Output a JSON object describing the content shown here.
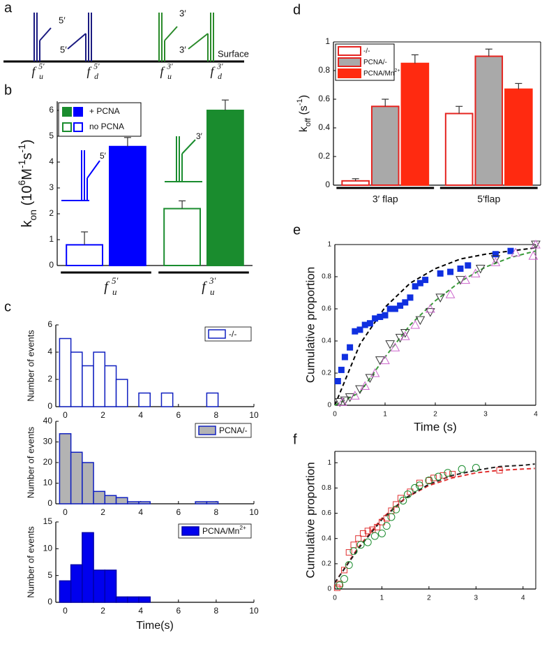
{
  "panel_a": {
    "label": "a",
    "primer_labels": [
      "5′",
      "5′",
      "3′",
      "3′"
    ],
    "surface": "Surface",
    "substrates": [
      {
        "base": "f",
        "sub": "u",
        "sup": "5′"
      },
      {
        "base": "f",
        "sub": "d",
        "sup": "5′"
      },
      {
        "base": "f",
        "sub": "u",
        "sup": "3′"
      },
      {
        "base": "f",
        "sub": "d",
        "sup": "3′"
      }
    ]
  },
  "chart_data": [
    {
      "type": "bar",
      "panel_label": "b",
      "ylabel": [
        {
          "text": "k"
        },
        {
          "text": "on",
          "shift": "sub"
        },
        {
          "text": "  (10"
        },
        {
          "text": "6",
          "shift": "sup"
        },
        {
          "text": "M"
        },
        {
          "text": "-1",
          "shift": "sup"
        },
        {
          "text": "s"
        },
        {
          "text": "-1",
          "shift": "sup"
        },
        {
          "text": ")"
        }
      ],
      "categories": [
        {
          "base": "f",
          "sub": "u",
          "sup": "5′"
        },
        {
          "base": "f",
          "sub": "u",
          "sup": "3′"
        }
      ],
      "category_colors": [
        "#0000ff",
        "#1a8c2e"
      ],
      "series": [
        {
          "name": "no PCNA",
          "filled": false,
          "values": [
            0.8,
            2.2
          ],
          "errors": [
            0.5,
            0.3
          ]
        },
        {
          "name": "+ PCNA",
          "filled": true,
          "values": [
            4.6,
            6.0
          ],
          "errors": [
            0.35,
            0.4
          ]
        }
      ],
      "insets": [
        "5′",
        "3′"
      ],
      "ylim": [
        0,
        6.35
      ],
      "yticks": [
        0,
        1,
        2,
        3,
        4,
        5,
        6
      ]
    },
    {
      "type": "histogram",
      "panel_label": "c",
      "ylabel": "Number of events",
      "series": [
        {
          "name": [
            {
              "text": "-/-"
            }
          ],
          "fill": "#ffffff",
          "edge": "#1020c0"
        }
      ],
      "bins": [
        -0.3,
        0.3,
        0.9,
        1.5,
        2.1,
        2.7,
        3.3,
        3.9,
        4.5,
        5.1,
        5.7,
        6.3,
        6.9,
        7.5,
        8.1
      ],
      "counts": [
        5,
        4,
        3,
        4,
        3,
        2,
        0,
        1,
        0,
        1,
        0,
        0,
        0,
        1
      ],
      "xlim": [
        -0.5,
        10
      ],
      "xticks": [
        0,
        2,
        4,
        6,
        8,
        10
      ],
      "ylim": [
        0,
        6
      ],
      "yticks": [
        0,
        2,
        4,
        6
      ]
    },
    {
      "type": "histogram",
      "ylabel": "Number of events",
      "series": [
        {
          "name": [
            {
              "text": "PCNA/-"
            }
          ],
          "fill": "#b3b3b3",
          "edge": "#1020c0"
        }
      ],
      "bins": [
        -0.3,
        0.3,
        0.9,
        1.5,
        2.1,
        2.7,
        3.3,
        3.9,
        4.5,
        5.1,
        5.7,
        6.3,
        6.9,
        7.5,
        8.1
      ],
      "counts": [
        34,
        25,
        20,
        6,
        4,
        3,
        1,
        1,
        0,
        0,
        0,
        0,
        1,
        1
      ],
      "xlim": [
        -0.5,
        10
      ],
      "xticks": [
        0,
        2,
        4,
        6,
        8,
        10
      ],
      "ylim": [
        0,
        40
      ],
      "yticks": [
        0,
        10,
        20,
        30,
        40
      ]
    },
    {
      "type": "histogram",
      "ylabel": "Number of events",
      "xlabel": "Time(s)",
      "series": [
        {
          "name": [
            {
              "text": "PCNA/Mn"
            },
            {
              "text": "2+",
              "shift": "sup"
            }
          ],
          "fill": "#0000ee",
          "edge": "#0000aa"
        }
      ],
      "bins": [
        -0.3,
        0.3,
        0.9,
        1.5,
        2.1,
        2.7,
        3.3,
        3.9,
        4.5
      ],
      "counts": [
        4,
        7,
        13,
        6,
        6,
        1,
        1,
        1
      ],
      "xlim": [
        -0.5,
        10
      ],
      "xticks": [
        0,
        2,
        4,
        6,
        8,
        10
      ],
      "ylim": [
        0,
        15
      ],
      "yticks": [
        0,
        5,
        10,
        15
      ]
    },
    {
      "type": "bar",
      "panel_label": "d",
      "ylabel": [
        {
          "text": "k"
        },
        {
          "text": "off",
          "shift": "sub"
        },
        {
          "text": "  (s"
        },
        {
          "text": "-1",
          "shift": "sup"
        },
        {
          "text": ")"
        }
      ],
      "categories": [
        "3′ flap",
        "5′flap"
      ],
      "series": [
        {
          "name": [
            {
              "text": "-/-"
            }
          ],
          "fill": "#ffffff",
          "edge": "#e52420",
          "values": [
            0.03,
            0.5
          ],
          "errors": [
            0.015,
            0.05
          ]
        },
        {
          "name": [
            {
              "text": "PCNA/-"
            }
          ],
          "fill": "#a9a9a9",
          "edge": "#e52420",
          "values": [
            0.55,
            0.9
          ],
          "errors": [
            0.05,
            0.05
          ]
        },
        {
          "name": [
            {
              "text": "PCNA/Mn"
            },
            {
              "text": "2+",
              "shift": "sup"
            }
          ],
          "fill": "#ff2a10",
          "edge": "#ff2a10",
          "values": [
            0.85,
            0.67
          ],
          "errors": [
            0.06,
            0.04
          ]
        }
      ],
      "ylim": [
        0,
        1
      ],
      "yticks": [
        0,
        0.2,
        0.4,
        0.6,
        0.8,
        1
      ]
    },
    {
      "type": "scatter",
      "panel_label": "e",
      "xlabel": "Time (s)",
      "ylabel": "Cumulative proportion",
      "series": [
        {
          "marker": "square",
          "color": "#1030e0",
          "filled": true,
          "x": [
            0.06,
            0.13,
            0.2,
            0.3,
            0.4,
            0.5,
            0.6,
            0.7,
            0.8,
            0.9,
            1.0,
            1.1,
            1.2,
            1.3,
            1.4,
            1.5,
            1.6,
            1.7,
            1.8,
            2.1,
            2.3,
            2.5,
            2.65,
            3.2,
            3.5
          ],
          "values": [
            0.15,
            0.22,
            0.3,
            0.36,
            0.46,
            0.47,
            0.5,
            0.51,
            0.54,
            0.55,
            0.56,
            0.6,
            0.6,
            0.62,
            0.64,
            0.67,
            0.74,
            0.76,
            0.78,
            0.82,
            0.83,
            0.85,
            0.87,
            0.94,
            0.96
          ]
        },
        {
          "marker": "triangle-down",
          "color": "#333333",
          "filled": false,
          "x": [
            0.1,
            0.2,
            0.3,
            0.5,
            0.7,
            0.9,
            1.1,
            1.3,
            1.4,
            1.7,
            1.9,
            2.1,
            2.5,
            2.9,
            3.2,
            4.0
          ],
          "values": [
            0.02,
            0.03,
            0.05,
            0.1,
            0.17,
            0.28,
            0.38,
            0.42,
            0.45,
            0.53,
            0.58,
            0.67,
            0.78,
            0.85,
            0.91,
            1.0
          ]
        },
        {
          "marker": "triangle-up",
          "color": "#cc66cc",
          "filled": false,
          "x": [
            0.15,
            0.4,
            0.6,
            0.8,
            1.0,
            1.2,
            1.4,
            1.6,
            1.9,
            2.3,
            2.6,
            2.8,
            3.2,
            3.6,
            3.95,
            4.0
          ],
          "values": [
            0.02,
            0.06,
            0.12,
            0.2,
            0.28,
            0.36,
            0.43,
            0.5,
            0.6,
            0.69,
            0.78,
            0.82,
            0.89,
            0.95,
            0.93,
            1.0
          ]
        }
      ],
      "fits": [
        {
          "color": "#000000",
          "x": [
            0,
            0.5,
            1,
            1.5,
            2,
            2.5,
            3,
            3.5,
            4
          ],
          "values": [
            0,
            0.38,
            0.61,
            0.76,
            0.85,
            0.91,
            0.94,
            0.96,
            0.98
          ]
        },
        {
          "color": "#3a9a3a",
          "x": [
            0,
            0.5,
            1,
            1.5,
            2,
            2.5,
            3,
            3.5,
            4
          ],
          "values": [
            0,
            0.08,
            0.3,
            0.5,
            0.65,
            0.77,
            0.86,
            0.92,
            0.96
          ]
        }
      ],
      "xlim": [
        0,
        4
      ],
      "xticks": [
        0,
        1,
        2,
        3,
        4
      ],
      "ylim": [
        0,
        1
      ],
      "yticks": [
        0,
        0.2,
        0.4,
        0.6,
        0.8,
        1
      ]
    },
    {
      "type": "scatter",
      "panel_label": "f",
      "ylabel": "Cumulative proportion",
      "series": [
        {
          "marker": "square",
          "color": "#e03030",
          "filled": false,
          "x": [
            0.05,
            0.1,
            0.2,
            0.3,
            0.4,
            0.5,
            0.6,
            0.7,
            0.8,
            0.9,
            1.0,
            1.1,
            1.2,
            1.3,
            1.4,
            1.6,
            1.8,
            2.0,
            2.1,
            2.3,
            2.5,
            3.5
          ],
          "values": [
            0.01,
            0.04,
            0.15,
            0.29,
            0.35,
            0.4,
            0.44,
            0.46,
            0.47,
            0.49,
            0.53,
            0.56,
            0.62,
            0.67,
            0.72,
            0.77,
            0.84,
            0.86,
            0.88,
            0.9,
            0.91,
            0.94
          ]
        },
        {
          "marker": "circle",
          "color": "#1a8c2e",
          "filled": false,
          "x": [
            0.1,
            0.2,
            0.3,
            0.4,
            0.55,
            0.7,
            0.85,
            1.0,
            1.1,
            1.2,
            1.3,
            1.45,
            1.55,
            1.7,
            1.8,
            2.0,
            2.2,
            2.4,
            2.7,
            3.0
          ],
          "values": [
            0.03,
            0.08,
            0.19,
            0.3,
            0.35,
            0.37,
            0.42,
            0.44,
            0.5,
            0.57,
            0.63,
            0.7,
            0.75,
            0.8,
            0.82,
            0.86,
            0.89,
            0.92,
            0.95,
            0.96
          ]
        }
      ],
      "fits": [
        {
          "color": "#e03030",
          "x": [
            0,
            0.5,
            1,
            1.5,
            2,
            2.5,
            3,
            3.5,
            4,
            4.25
          ],
          "values": [
            0.05,
            0.33,
            0.56,
            0.72,
            0.82,
            0.88,
            0.92,
            0.94,
            0.95,
            0.955
          ]
        },
        {
          "color": "#222222",
          "x": [
            0,
            0.5,
            1,
            1.5,
            2,
            2.5,
            3,
            3.5,
            4,
            4.25
          ],
          "values": [
            0.05,
            0.32,
            0.55,
            0.72,
            0.83,
            0.9,
            0.94,
            0.97,
            0.98,
            0.99
          ]
        }
      ],
      "xlim": [
        0,
        4.27
      ],
      "xticks": [
        0,
        1,
        2,
        3,
        4
      ],
      "ylim": [
        0,
        1.09
      ],
      "yticks": [
        0,
        0.2,
        0.4,
        0.6,
        0.8,
        1
      ]
    }
  ]
}
